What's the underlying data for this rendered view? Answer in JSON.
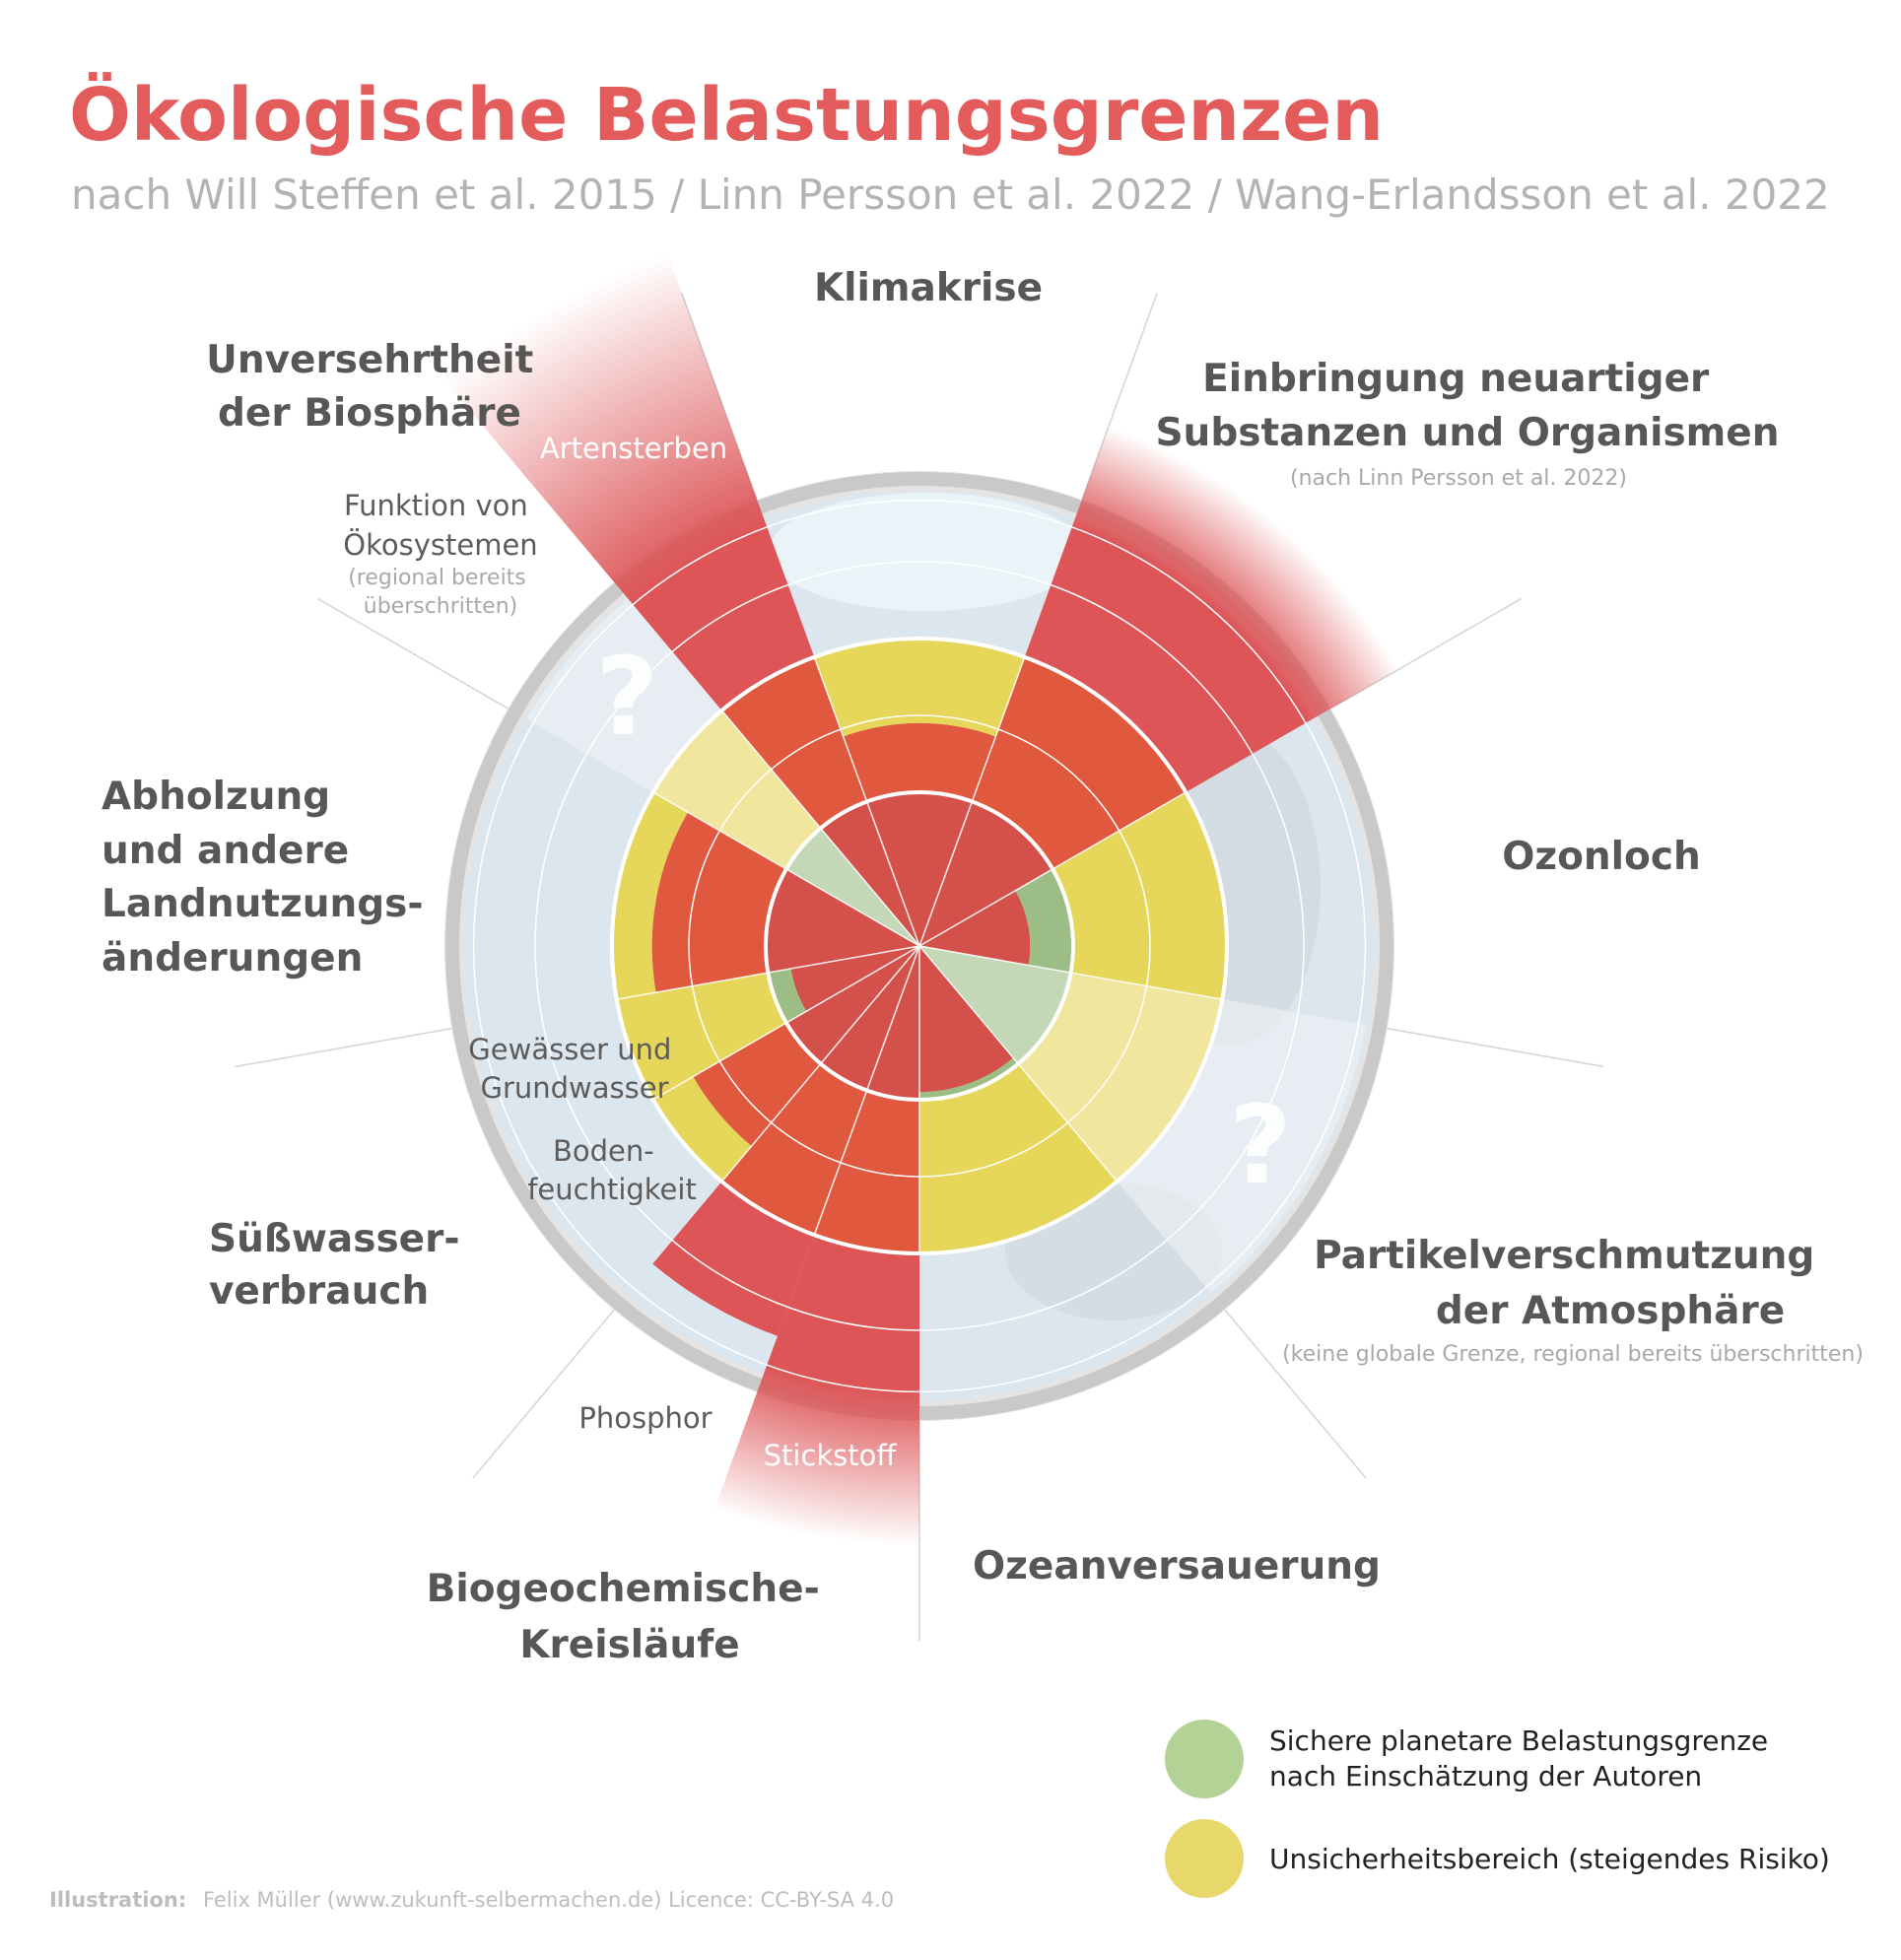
{
  "title": "Ökologische Belastungsgrenzen",
  "subtitle": "nach Will Steffen et al. 2015 / Linn Persson et al. 2022 / Wang-Erlandsson et al. 2022",
  "categories": {
    "klima": "Klimakrise",
    "biosphere": [
      "Unversehrtheit",
      "der Biosphäre"
    ],
    "novel": [
      "Einbringung neuartiger",
      "Substanzen und Organismen"
    ],
    "novel_note": "(nach Linn Persson et al. 2022)",
    "ozon": "Ozonloch",
    "land": [
      "Abholzung",
      "und andere",
      "Landnutzungs-",
      "änderungen"
    ],
    "fresh": [
      "Süßwasser-",
      "verbrauch"
    ],
    "biogeo": [
      "Biogeochemische-",
      "Kreisläufe"
    ],
    "ocean": "Ozeanversauerung",
    "aerosol": [
      "Partikelverschmutzung",
      "der Atmosphäre"
    ],
    "aerosol_note": "(keine globale Grenze, regional bereits überschritten)"
  },
  "sublabels": {
    "arten": "Artensterben",
    "funktion": [
      "Funktion von",
      "Ökosystemen"
    ],
    "funktion_note": [
      "(regional bereits",
      "überschritten)"
    ],
    "gewaesser": [
      "Gewässer und",
      "Grundwasser"
    ],
    "boden": [
      "Boden-",
      "feuchtigkeit"
    ],
    "phosphor": "Phosphor",
    "stickstoff": "Stickstoff"
  },
  "unknown_mark": "?",
  "legend": {
    "safe": [
      "Sichere planetare Belastungsgrenze",
      "nach Einschätzung der Autoren"
    ],
    "uncertain": "Unsicherheitsbereich (steigendes Risiko)",
    "safe_color": "#b3d296",
    "uncertain_color": "#e8d76b"
  },
  "footer": {
    "label": "Illustration:",
    "text": "Felix Müller (www.zukunft-selbermachen.de)   Licence: CC-BY-SA 4.0"
  },
  "colors": {
    "core_red": "#d3514a",
    "orange": "#e0583d",
    "red": "#dd5557",
    "green": "#9dbd86",
    "light_green": "#c4d8b8",
    "yellow": "#e6d75a",
    "light_yellow": "#f1e69e",
    "disc": "#dce6ef"
  },
  "sectors": [
    {
      "id": "klimakrise",
      "start": 340,
      "end": 20,
      "value": 1.45,
      "status": "measured"
    },
    {
      "id": "neuartige-substanzen",
      "start": 20,
      "end": 60,
      "value": 3.6,
      "status": "beyond"
    },
    {
      "id": "ozonloch",
      "start": 60,
      "end": 100,
      "value": 0.72,
      "status": "measured"
    },
    {
      "id": "partikel",
      "start": 100,
      "end": 140,
      "value": null,
      "status": "unknown"
    },
    {
      "id": "ozeanversauerung",
      "start": 140,
      "end": 180,
      "value": 0.95,
      "status": "measured"
    },
    {
      "id": "stickstoff",
      "start": 180,
      "end": 200,
      "value": 3.9,
      "status": "beyond"
    },
    {
      "id": "phosphor",
      "start": 200,
      "end": 220,
      "value": 2.7,
      "status": "measured"
    },
    {
      "id": "bodenfeuchtigkeit",
      "start": 220,
      "end": 240,
      "value": 1.7,
      "status": "measured"
    },
    {
      "id": "gewaesser",
      "start": 240,
      "end": 260,
      "value": 0.85,
      "status": "measured"
    },
    {
      "id": "landnutzung",
      "start": 260,
      "end": 300,
      "value": 1.74,
      "status": "measured"
    },
    {
      "id": "funktion-oekosysteme",
      "start": 300,
      "end": 320,
      "value": null,
      "status": "unknown"
    },
    {
      "id": "artensterben",
      "start": 320,
      "end": 340,
      "value": 4.8,
      "status": "beyond"
    }
  ]
}
